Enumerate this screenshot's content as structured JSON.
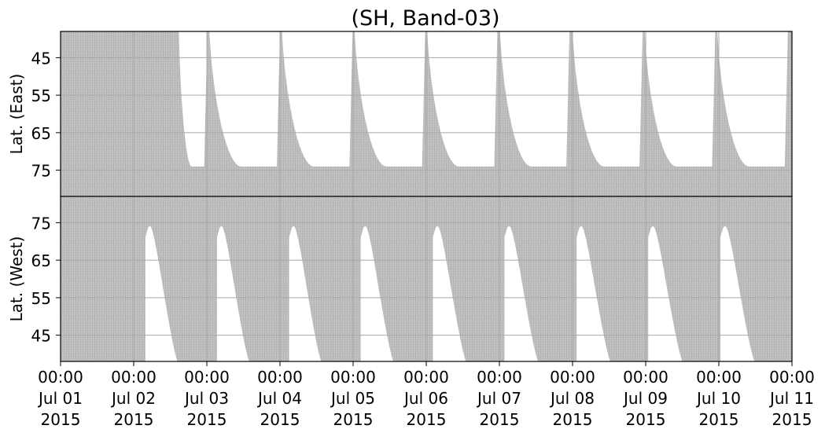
{
  "chart_data": {
    "type": "area",
    "title": "(SH, Band-03)",
    "x_ticks": [
      {
        "value": "2015-07-01T00:00",
        "line1": "00:00",
        "line2": "Jul 01",
        "line3": "2015"
      },
      {
        "value": "2015-07-02T00:00",
        "line1": "00:00",
        "line2": "Jul 02",
        "line3": "2015"
      },
      {
        "value": "2015-07-03T00:00",
        "line1": "00:00",
        "line2": "Jul 03",
        "line3": "2015"
      },
      {
        "value": "2015-07-04T00:00",
        "line1": "00:00",
        "line2": "Jul 04",
        "line3": "2015"
      },
      {
        "value": "2015-07-05T00:00",
        "line1": "00:00",
        "line2": "Jul 05",
        "line3": "2015"
      },
      {
        "value": "2015-07-06T00:00",
        "line1": "00:00",
        "line2": "Jul 06",
        "line3": "2015"
      },
      {
        "value": "2015-07-07T00:00",
        "line1": "00:00",
        "line2": "Jul 07",
        "line3": "2015"
      },
      {
        "value": "2015-07-08T00:00",
        "line1": "00:00",
        "line2": "Jul 08",
        "line3": "2015"
      },
      {
        "value": "2015-07-09T00:00",
        "line1": "00:00",
        "line2": "Jul 09",
        "line3": "2015"
      },
      {
        "value": "2015-07-10T00:00",
        "line1": "00:00",
        "line2": "Jul 10",
        "line3": "2015"
      },
      {
        "value": "2015-07-11T00:00",
        "line1": "00:00",
        "line2": "Jul 11",
        "line3": "2015"
      }
    ],
    "xlim": [
      "2015-07-01T00:00",
      "2015-07-11T00:00"
    ],
    "grid": true,
    "colors": {
      "coverage": "#bdbdbd",
      "grid": "#a8a8a8",
      "axis": "#000000",
      "gap": "#ffffff"
    },
    "panels": [
      {
        "ylabel": "Lat. (East)",
        "yticks": [
          45,
          55,
          65,
          75
        ],
        "ylim": [
          38,
          82
        ],
        "y_inverted": true,
        "gaps_start_hours": 0,
        "gap_regions": [
          {
            "start": "2015-07-02T14:50",
            "end": "2015-07-03T00:10",
            "lat_edge": 74
          },
          {
            "start": "2015-07-03T00:50",
            "end": "2015-07-04T00:00",
            "lat_edge": 74
          },
          {
            "start": "2015-07-04T00:40",
            "end": "2015-07-04T23:50",
            "lat_edge": 74
          },
          {
            "start": "2015-07-05T00:30",
            "end": "2015-07-05T23:40",
            "lat_edge": 74
          },
          {
            "start": "2015-07-06T00:20",
            "end": "2015-07-06T23:20",
            "lat_edge": 74
          },
          {
            "start": "2015-07-07T00:10",
            "end": "2015-07-07T23:00",
            "lat_edge": 74
          },
          {
            "start": "2015-07-08T00:00",
            "end": "2015-07-08T23:00",
            "lat_edge": 74
          },
          {
            "start": "2015-07-08T23:40",
            "end": "2015-07-09T22:50",
            "lat_edge": 74
          },
          {
            "start": "2015-07-09T23:30",
            "end": "2015-07-10T22:40",
            "lat_edge": 74
          }
        ]
      },
      {
        "ylabel": "Lat. (West)",
        "yticks": [
          75,
          65,
          55,
          45
        ],
        "ylim": [
          38,
          82
        ],
        "y_inverted": false,
        "gap_regions": [
          {
            "start": "2015-07-02T03:50",
            "end": "2015-07-02T14:20",
            "lat_edge": 74
          },
          {
            "start": "2015-07-03T03:20",
            "end": "2015-07-03T13:50",
            "lat_edge": 74
          },
          {
            "start": "2015-07-04T03:00",
            "end": "2015-07-04T13:30",
            "lat_edge": 74
          },
          {
            "start": "2015-07-05T02:30",
            "end": "2015-07-05T13:10",
            "lat_edge": 74
          },
          {
            "start": "2015-07-06T02:10",
            "end": "2015-07-06T13:00",
            "lat_edge": 74
          },
          {
            "start": "2015-07-07T01:40",
            "end": "2015-07-07T12:40",
            "lat_edge": 74
          },
          {
            "start": "2015-07-08T01:20",
            "end": "2015-07-08T12:20",
            "lat_edge": 74
          },
          {
            "start": "2015-07-09T00:50",
            "end": "2015-07-09T12:00",
            "lat_edge": 74
          },
          {
            "start": "2015-07-10T00:30",
            "end": "2015-07-10T11:40",
            "lat_edge": 74
          }
        ]
      }
    ]
  }
}
